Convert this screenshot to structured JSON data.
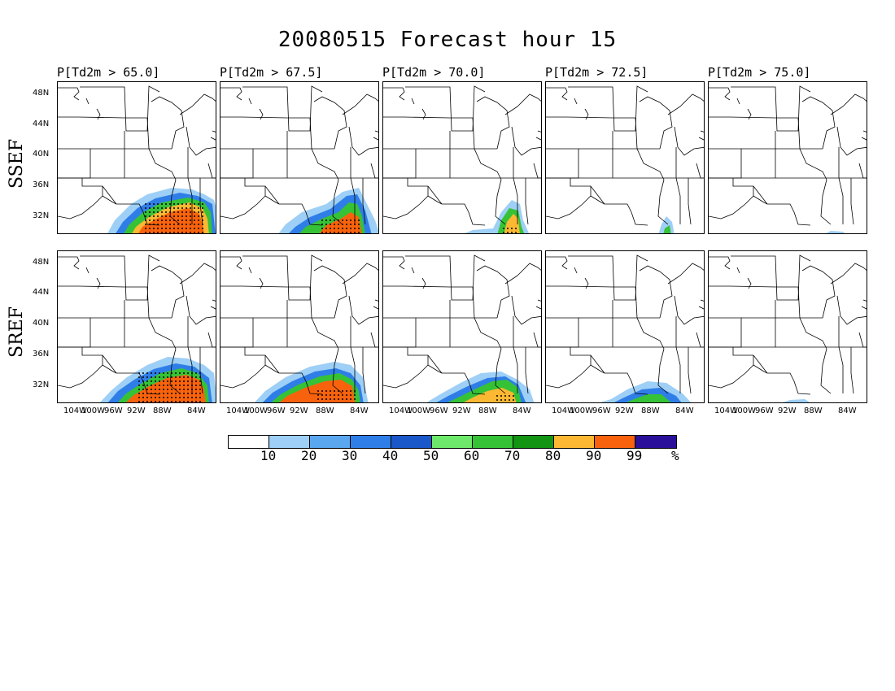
{
  "title": "20080515 Forecast hour 15",
  "rows": [
    {
      "label": "SSEF"
    },
    {
      "label": "SREF"
    }
  ],
  "panels": [
    "P[Td2m > 65.0]",
    "P[Td2m > 67.5]",
    "P[Td2m > 70.0]",
    "P[Td2m > 72.5]",
    "P[Td2m > 75.0]"
  ],
  "lat_ticks": [
    "48N",
    "44N",
    "40N",
    "36N",
    "32N"
  ],
  "lon_ticks": [
    "104W",
    "100W",
    "96W",
    "92W",
    "88W",
    "84W"
  ],
  "colorbar": {
    "colors": [
      "#ffffff",
      "#9ecff6",
      "#5aa6ef",
      "#2f7ee8",
      "#1a58c9",
      "#6ee86a",
      "#36c236",
      "#139413",
      "#fdb833",
      "#f8620c",
      "#2a0f9a"
    ],
    "labels": [
      "10",
      "20",
      "30",
      "40",
      "50",
      "60",
      "70",
      "80",
      "90",
      "99",
      "%"
    ]
  }
}
